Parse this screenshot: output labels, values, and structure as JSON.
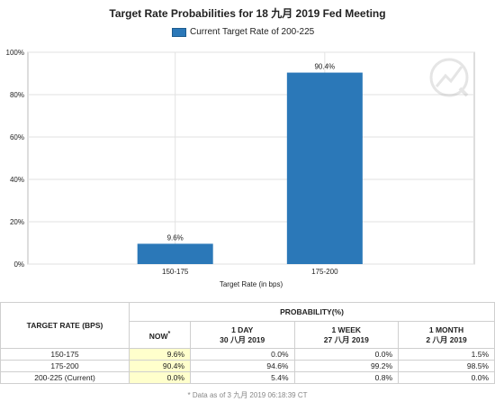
{
  "chart_data": {
    "type": "bar",
    "title": "Target Rate Probabilities for 18 九月 2019 Fed Meeting",
    "categories": [
      "150-175",
      "175-200"
    ],
    "series": [
      {
        "name": "Current Target Rate of 200-225",
        "values": [
          9.6,
          90.4
        ],
        "color": "#2b78b8"
      }
    ],
    "data_labels": [
      "9.6%",
      "90.4%"
    ],
    "xlabel": "Target Rate (in bps)",
    "ylabel": "",
    "ylim": [
      0,
      100
    ],
    "yticks": [
      "0%",
      "20%",
      "40%",
      "60%",
      "80%",
      "100%"
    ],
    "yticks_values": [
      0,
      20,
      40,
      60,
      80,
      100
    ],
    "grid": true,
    "legend_position": "top-center"
  },
  "table": {
    "header_target": "TARGET RATE (BPS)",
    "header_probability": "PROBABILITY(%)",
    "columns": [
      {
        "label": "NOW",
        "marker": "*",
        "date": ""
      },
      {
        "label": "1 DAY",
        "date": "30 八月 2019"
      },
      {
        "label": "1 WEEK",
        "date": "27 八月 2019"
      },
      {
        "label": "1 MONTH",
        "date": "2 八月 2019"
      }
    ],
    "rows": [
      {
        "rate": "150-175",
        "values": [
          "9.6%",
          "0.0%",
          "0.0%",
          "1.5%"
        ]
      },
      {
        "rate": "175-200",
        "values": [
          "90.4%",
          "94.6%",
          "99.2%",
          "98.5%"
        ]
      },
      {
        "rate": "200-225 (Current)",
        "values": [
          "0.0%",
          "5.4%",
          "0.8%",
          "0.0%"
        ]
      }
    ],
    "footnote": "* Data as of 3 九月 2019 06:18:39 CT"
  }
}
